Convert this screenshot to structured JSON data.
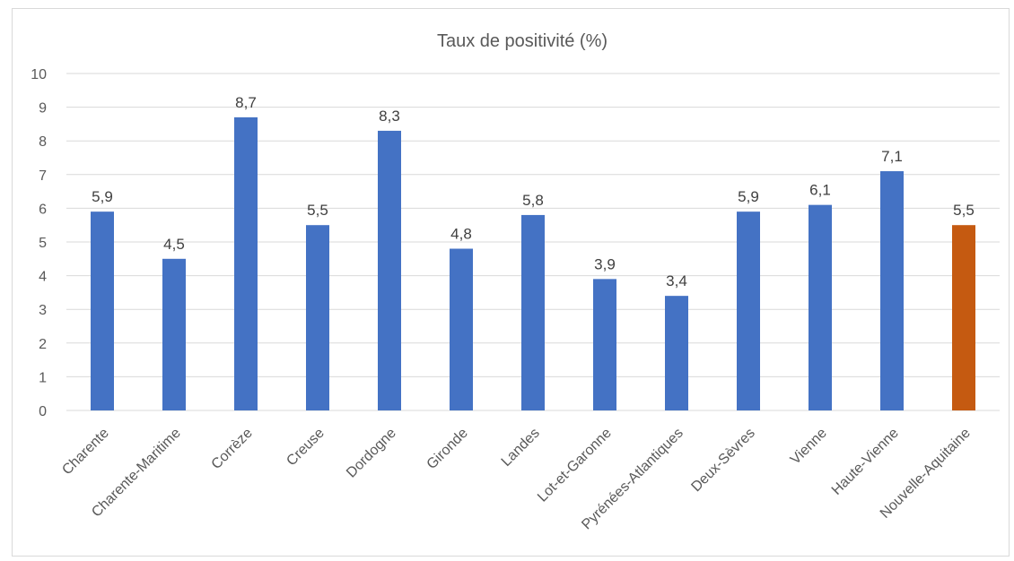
{
  "chart_data": {
    "type": "bar",
    "title": "Taux de positivité (%)",
    "xlabel": "",
    "ylabel": "",
    "ylim": [
      0,
      10
    ],
    "yticks": [
      0,
      1,
      2,
      3,
      4,
      5,
      6,
      7,
      8,
      9,
      10
    ],
    "grid": true,
    "legend": "none",
    "categories": [
      "Charente",
      "Charente-Maritime",
      "Corrèze",
      "Creuse",
      "Dordogne",
      "Gironde",
      "Landes",
      "Lot-et-Garonne",
      "Pyrénées-Atlantiques",
      "Deux-Sèvres",
      "Vienne",
      "Haute-Vienne",
      "Nouvelle-Aquitaine"
    ],
    "values": [
      5.9,
      4.5,
      8.7,
      5.5,
      8.3,
      4.8,
      5.8,
      3.9,
      3.4,
      5.9,
      6.1,
      7.1,
      5.5
    ],
    "data_labels": [
      "5,9",
      "4,5",
      "8,7",
      "5,5",
      "8,3",
      "4,8",
      "5,8",
      "3,9",
      "3,4",
      "5,9",
      "6,1",
      "7,1",
      "5,5"
    ],
    "colors": {
      "default": "#4472C4",
      "highlight": "#C55A11",
      "highlight_category": "Nouvelle-Aquitaine",
      "gridline": "#d9d9d9",
      "text": "#595959"
    }
  }
}
